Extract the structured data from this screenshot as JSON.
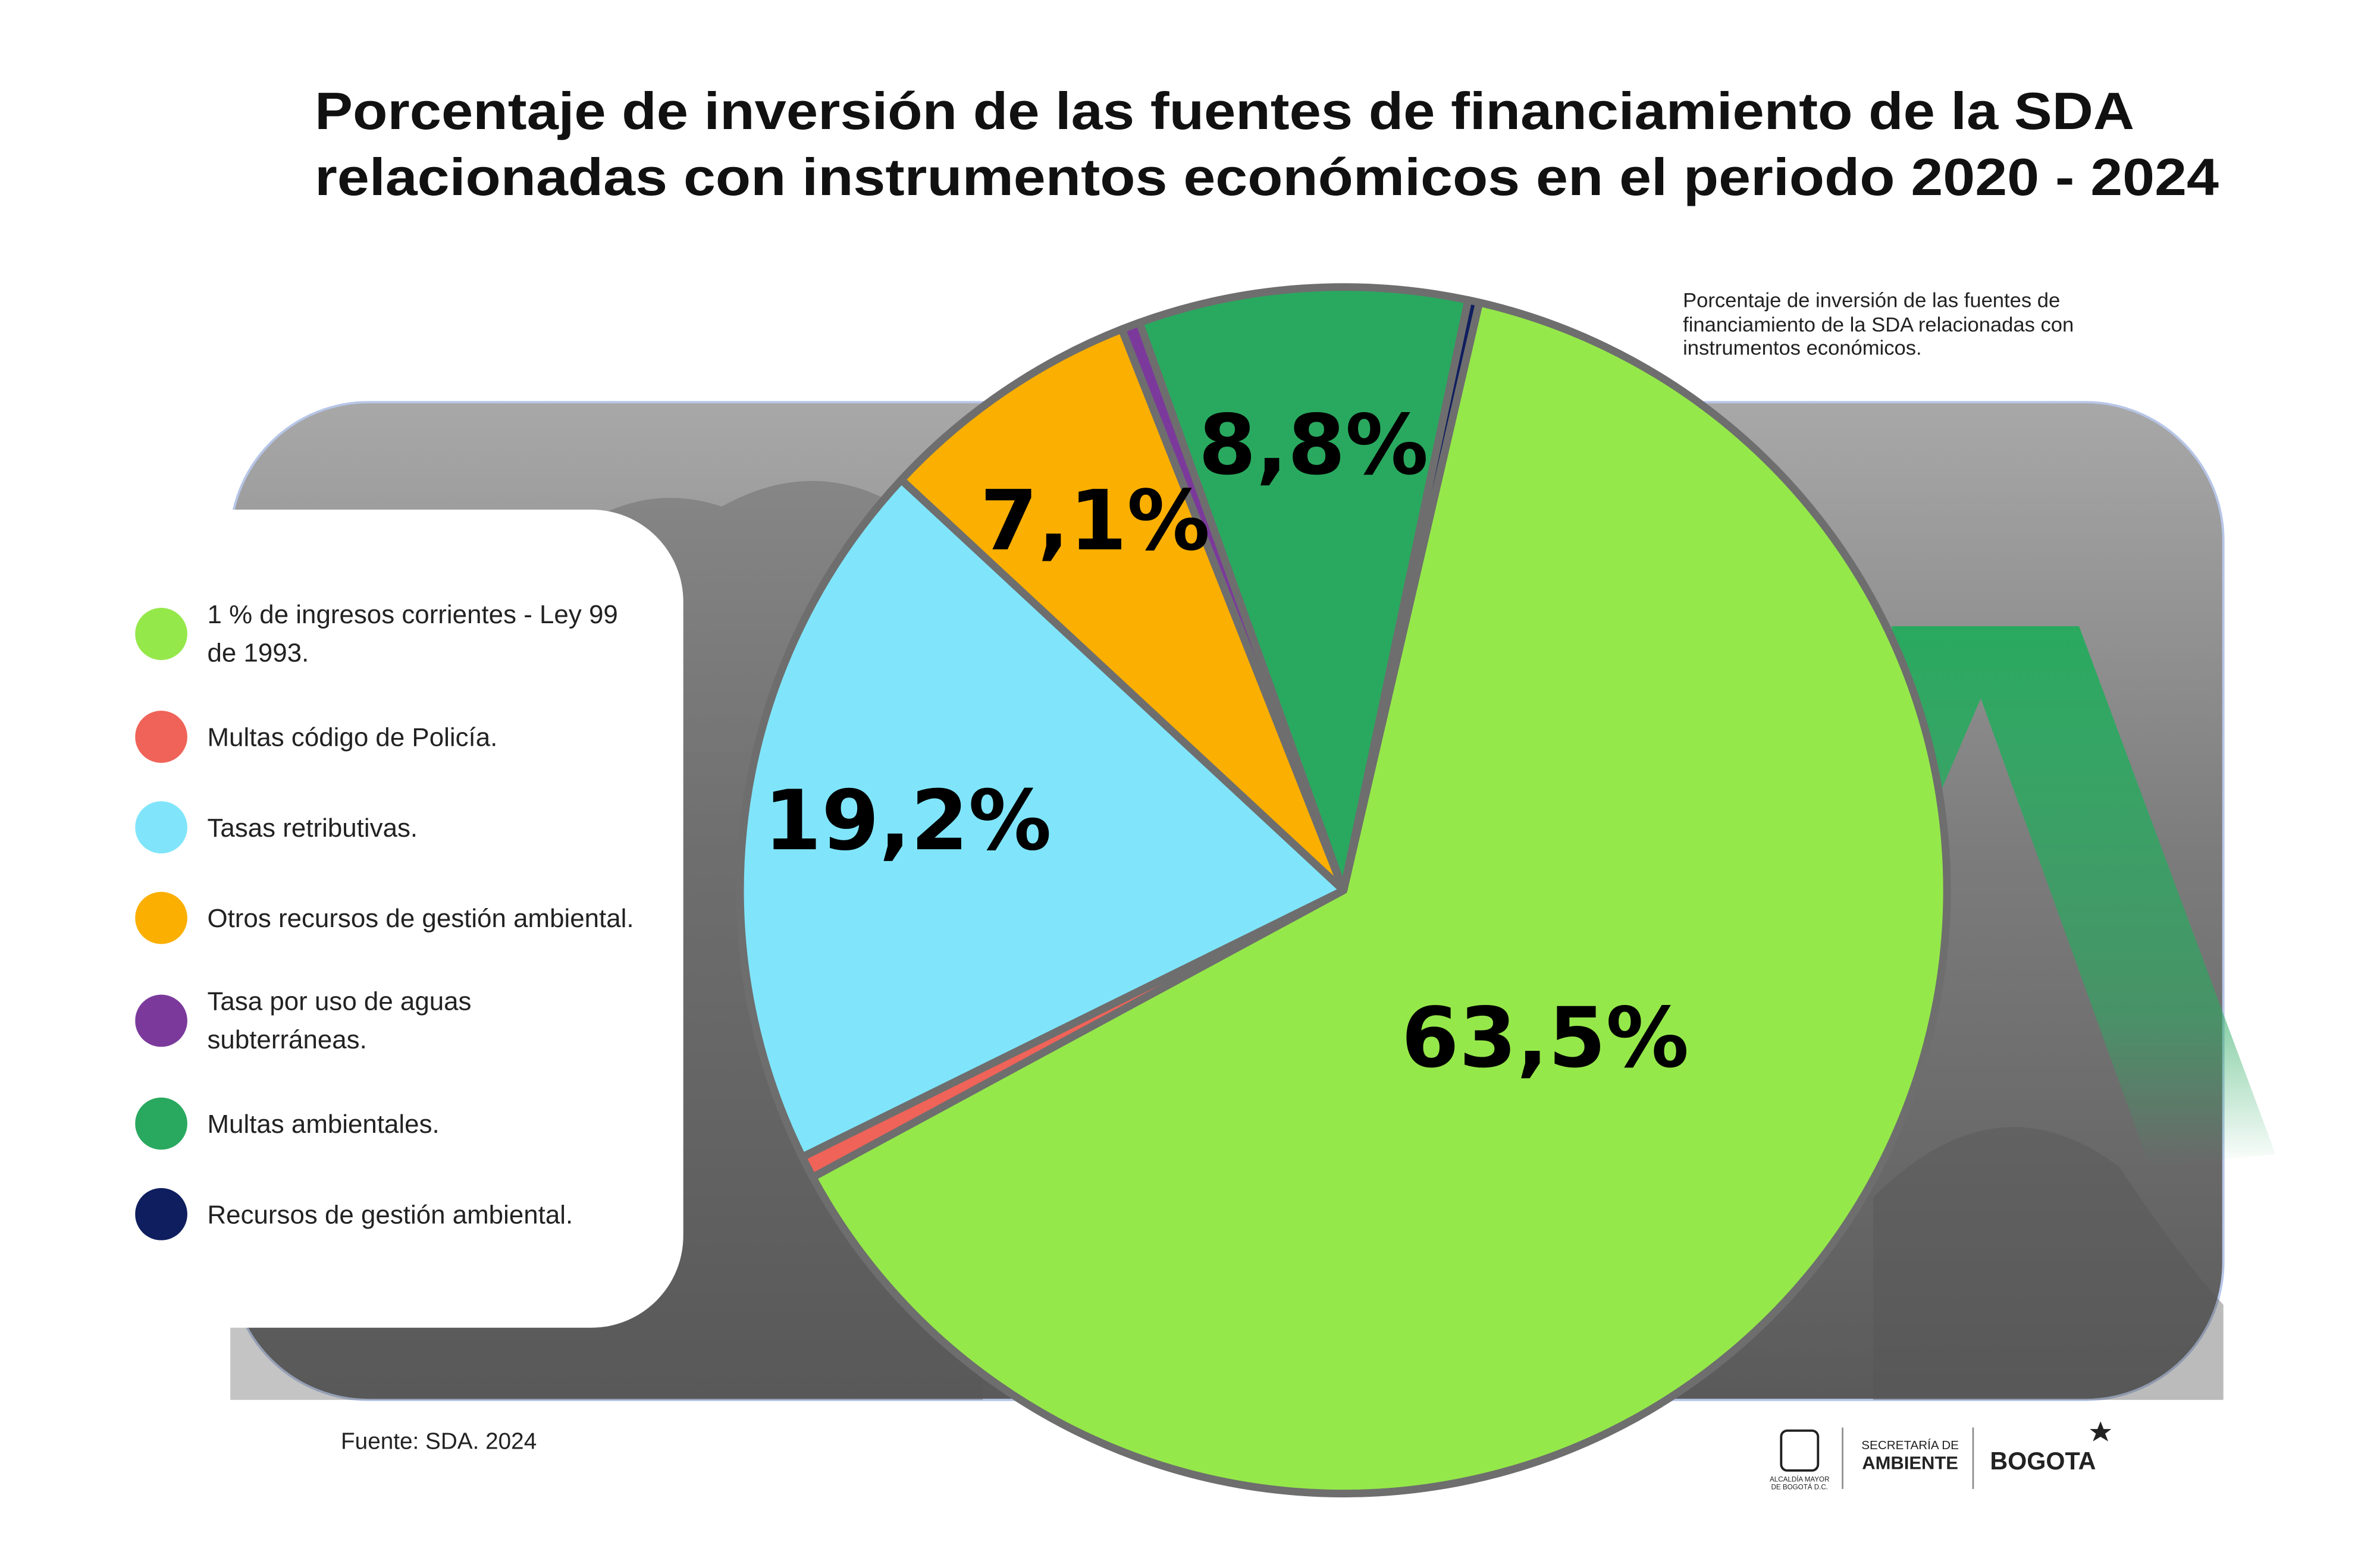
{
  "chart_data": {
    "type": "pie",
    "title": [
      "Porcentaje de inversión de las fuentes de financiamiento de la SDA",
      "relacionadas con instrumentos económicos en el periodo 2020 - 2024"
    ],
    "subtitle": "Porcentaje de inversión de las fuentes de financiamiento de la SDA relacionadas con instrumentos económicos.",
    "source": "Fuente: SDA. 2024",
    "categories": [
      "1 % de ingresos corrientes - Ley 99 de 1993.",
      "Multas código de Policía.",
      "Tasas retributivas.",
      "Otros recursos de gestión ambiental.",
      "Tasa por uso de aguas subterráneas.",
      "Multas ambientales.",
      "Recursos de gestión ambiental."
    ],
    "values": [
      63.5,
      0.6,
      19.2,
      7.1,
      0.5,
      8.8,
      0.3
    ],
    "value_labels": [
      "63,5%",
      null,
      "19,2%",
      "7,1%",
      null,
      "8,8%",
      null
    ],
    "colors": [
      "#95e84a",
      "#ef6358",
      "#80e5fb",
      "#fbaf00",
      "#7b3a9b",
      "#29a95f",
      "#0f1e5e"
    ]
  },
  "logos": {
    "alcaldia": [
      "ALCALDÍA MAYOR",
      "DE BOGOTÁ D.C."
    ],
    "secretaria": [
      "SECRETARÍA DE",
      "AMBIENTE"
    ],
    "city": "BOGOTA"
  }
}
